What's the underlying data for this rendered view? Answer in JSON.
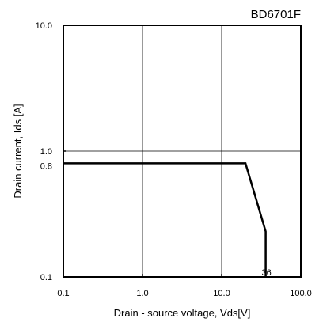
{
  "chart_data": {
    "type": "line",
    "title": "BD6701F",
    "xlabel": "Drain - source voltage, Vds[V]",
    "ylabel": "Drain current, Ids [A]",
    "x_scale": "log",
    "y_scale": "log",
    "xlim": [
      0.1,
      100
    ],
    "ylim": [
      0.1,
      10
    ],
    "x_ticks": [
      0.1,
      1,
      10,
      100
    ],
    "x_tick_labels": [
      "0.1",
      "1.0",
      "10.0",
      "100.0"
    ],
    "y_ticks": [
      0.1,
      1,
      10
    ],
    "y_tick_labels": [
      "0.1",
      "1.0",
      "10.0"
    ],
    "y_extra_tick": 0.8,
    "y_extra_tick_label": "0.8",
    "grid": true,
    "series": [
      {
        "x": [
          0.1,
          20,
          36,
          36
        ],
        "y": [
          0.8,
          0.8,
          0.23,
          0.1
        ]
      }
    ],
    "annotations": [
      {
        "text": "36",
        "x": 36,
        "y": 0.1
      }
    ]
  }
}
